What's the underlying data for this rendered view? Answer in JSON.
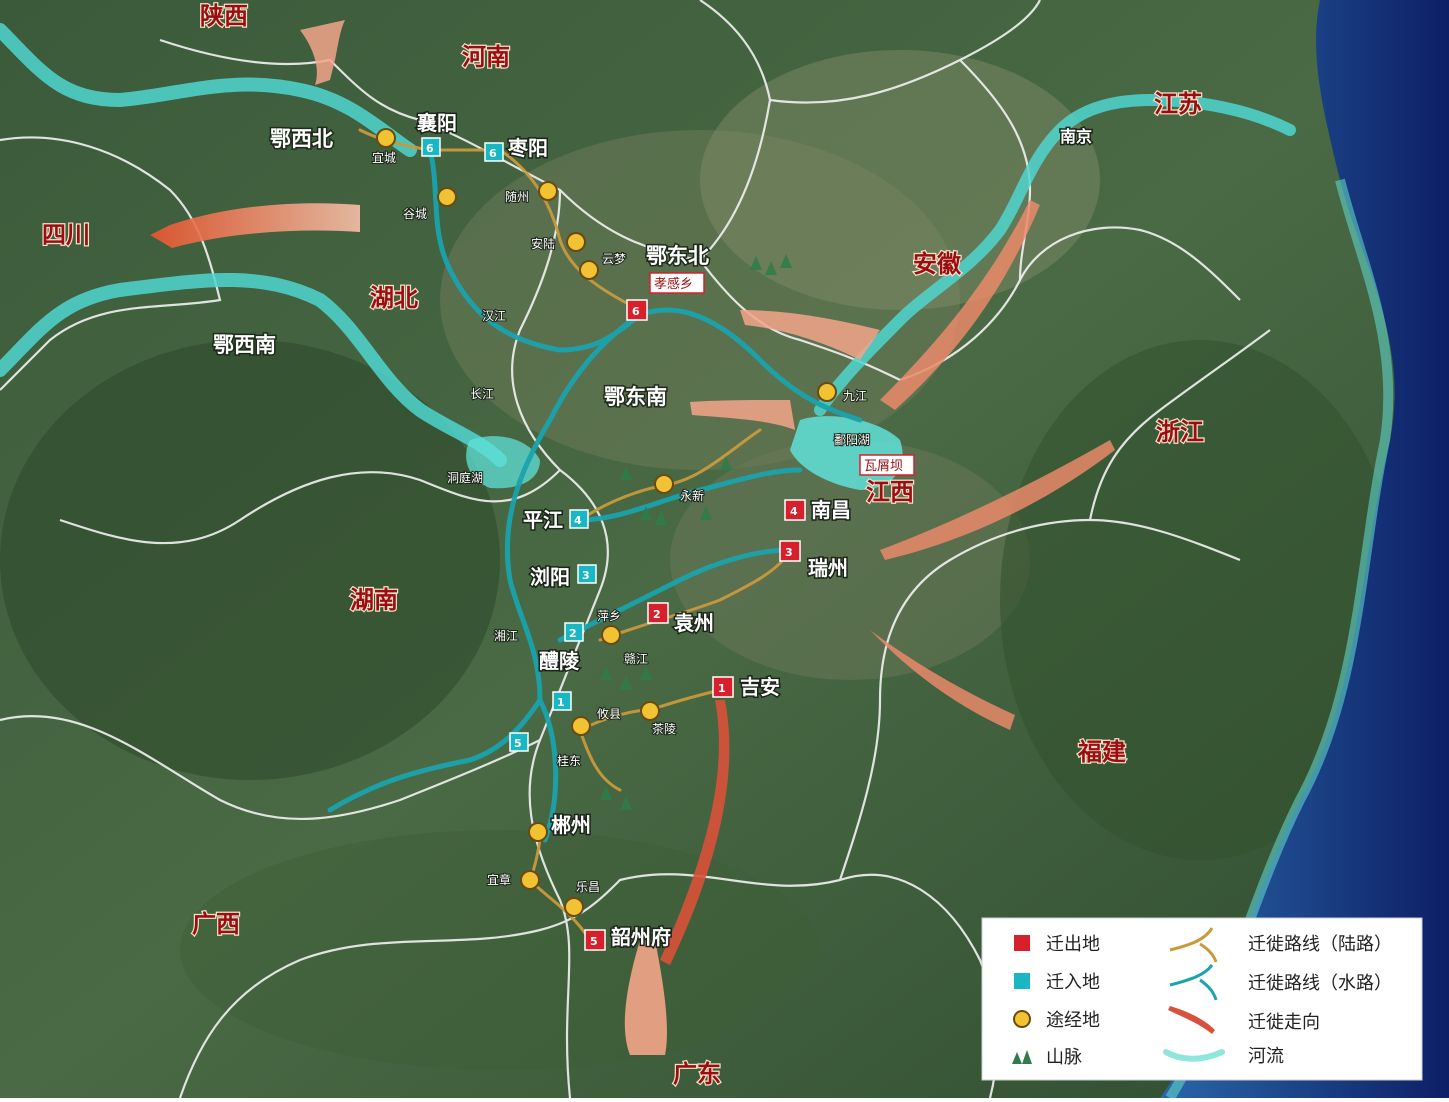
{
  "provinces": {
    "shaanxi": "陕西",
    "henan": "河南",
    "sichuan": "四川",
    "hubei": "湖北",
    "anhui": "安徽",
    "jiangsu": "江苏",
    "zhejiang": "浙江",
    "jiangxi": "江西",
    "hunan": "湖南",
    "fujian": "福建",
    "guangxi": "广西",
    "guangdong": "广东"
  },
  "regions": {
    "exibei": "鄂西北",
    "exinan": "鄂西南",
    "edongbei": "鄂东北",
    "edongnan": "鄂东南"
  },
  "places": {
    "xiangyang": "襄阳",
    "zaoyang": "枣阳",
    "nanjing": "南京",
    "pingjiang": "平江",
    "liuyang": "浏阳",
    "liling": "醴陵",
    "nanchang": "南昌",
    "ruizhou": "瑞州",
    "yuanzhou": "袁州",
    "jian": "吉安",
    "chenzhou": "郴州",
    "shaozhoufu": "韶州府",
    "xiaogan": "孝感乡",
    "wawuchang": "瓦屑坝"
  },
  "small_labels": [
    "随州",
    "安陆",
    "云梦",
    "宜城",
    "谷城",
    "萍乡",
    "攸县",
    "茶陵",
    "永新",
    "桂东",
    "宜章",
    "乐昌",
    "湘江",
    "赣江",
    "汉江",
    "长江",
    "鄱阳湖",
    "洞庭湖",
    "九江"
  ],
  "legend": {
    "out_label": "迁出地",
    "in_label": "迁入地",
    "via_label": "途经地",
    "mountain_label": "山脉",
    "land_route_label": "迁徙路线（陆路）",
    "water_route_label": "迁徙路线（水路）",
    "direction_label": "迁徙走向",
    "river_label": "河流"
  },
  "colors": {
    "out": "#d8202c",
    "in": "#19b7c4",
    "via": "#f1c232",
    "river": "#5fe0d8",
    "arrow": "#f3a58a",
    "border": "#f2f2f2"
  }
}
